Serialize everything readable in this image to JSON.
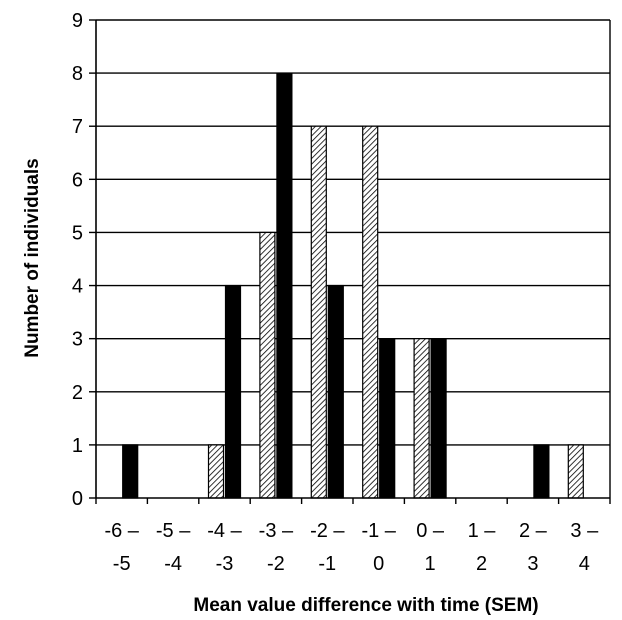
{
  "chart_data": {
    "type": "bar",
    "title": "",
    "xlabel": "Mean value difference with time (SEM)",
    "ylabel": "Number of individuals",
    "ylim": [
      0,
      9
    ],
    "yticks": [
      "0",
      "1",
      "2",
      "3",
      "4",
      "5",
      "6",
      "7",
      "8",
      "9"
    ],
    "grid": true,
    "categories": [
      [
        "-6 –",
        "-5"
      ],
      [
        "-5 –",
        "-4"
      ],
      [
        "-4 –",
        "-3"
      ],
      [
        "-3 –",
        "-2"
      ],
      [
        "-2 –",
        "-1"
      ],
      [
        "-1 –",
        "0"
      ],
      [
        "0 –",
        "1"
      ],
      [
        "1 –",
        "2"
      ],
      [
        "2 –",
        "3"
      ],
      [
        "3 –",
        "4"
      ]
    ],
    "series": [
      {
        "style": "hatched",
        "color": "#000000",
        "values": [
          0,
          0,
          1,
          5,
          7,
          7,
          3,
          0,
          0,
          1
        ]
      },
      {
        "style": "solid",
        "color": "#000000",
        "values": [
          1,
          0,
          4,
          8,
          4,
          3,
          3,
          0,
          1,
          0
        ]
      }
    ]
  }
}
